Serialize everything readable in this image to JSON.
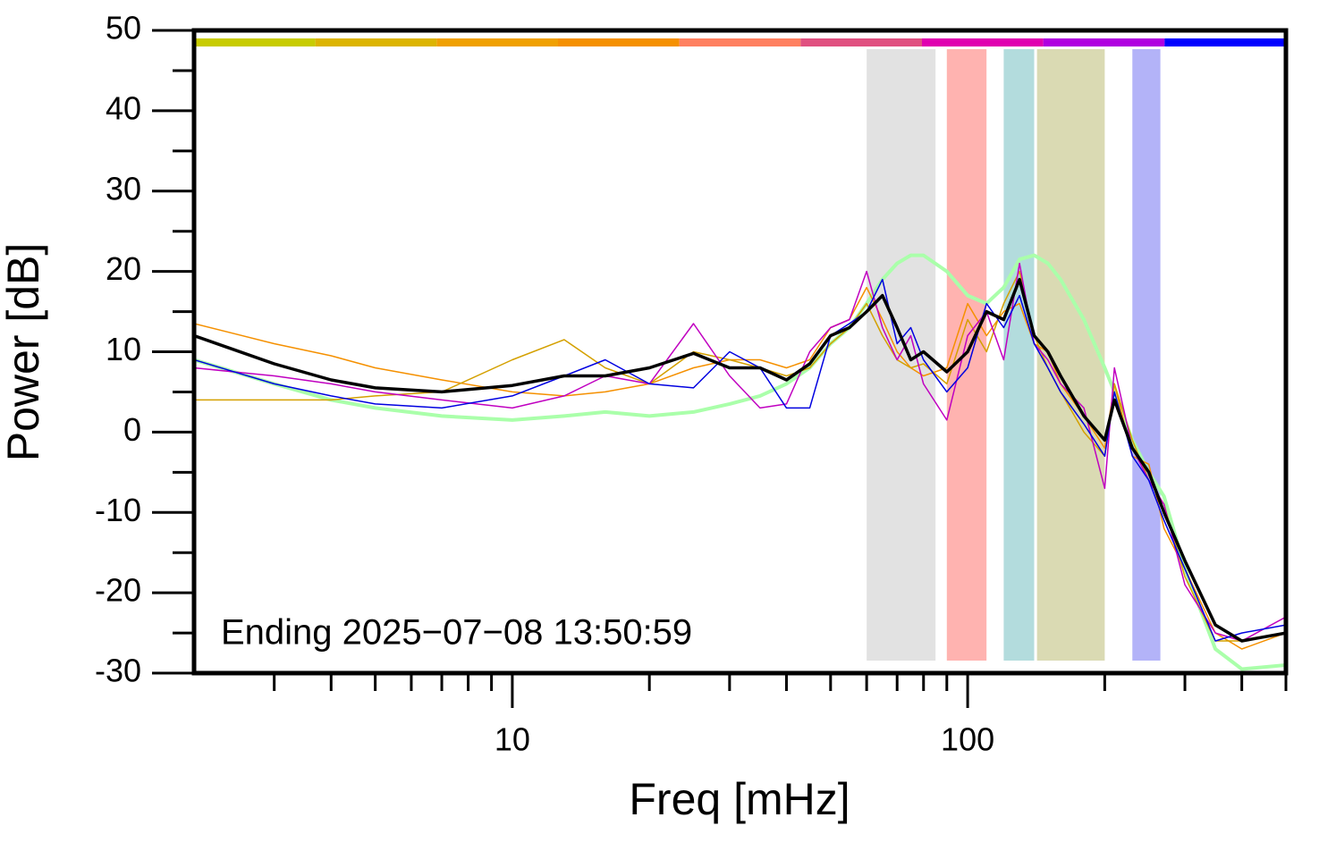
{
  "chart_data": {
    "type": "line",
    "annotation": "Ending 2025−07−08 13:50:59",
    "x_label": "Freq [mHz]",
    "y_label": "Power [dB]",
    "x_scale": "log",
    "xlim": [
      2,
      500
    ],
    "ylim": [
      -30,
      50
    ],
    "xticks": [
      10,
      100
    ],
    "xminorticks": [
      3,
      4,
      5,
      6,
      7,
      8,
      9,
      20,
      30,
      40,
      50,
      60,
      70,
      80,
      90,
      200,
      300,
      400,
      500
    ],
    "yticks": [
      -30,
      -20,
      -10,
      0,
      10,
      20,
      30,
      40,
      50
    ],
    "yminorticks": [
      -25,
      -15,
      -5,
      5,
      15,
      25,
      35,
      45
    ],
    "bands": [
      {
        "xlim": [
          60,
          85
        ],
        "color": "#e2e2e2"
      },
      {
        "xlim": [
          90,
          110
        ],
        "color": "#ffb3b0"
      },
      {
        "xlim": [
          120,
          140
        ],
        "color": "#b3dcdd"
      },
      {
        "xlim": [
          142,
          200
        ],
        "color": "#dadab3"
      },
      {
        "xlim": [
          230,
          265
        ],
        "color": "#b3b3f8"
      }
    ],
    "color_bar": [
      "#c8cc00",
      "#dcb400",
      "#f0a000",
      "#f59000",
      "#ff8060",
      "#e05080",
      "#e000b0",
      "#b000e0",
      "#0000ff"
    ],
    "x": [
      2,
      3,
      4,
      5,
      7,
      10,
      13,
      16,
      20,
      25,
      30,
      35,
      40,
      45,
      50,
      55,
      60,
      65,
      70,
      75,
      80,
      90,
      100,
      110,
      120,
      130,
      140,
      150,
      160,
      180,
      200,
      210,
      230,
      250,
      270,
      300,
      350,
      400,
      500
    ],
    "series": [
      {
        "color": "#aaffaa",
        "width": 4,
        "values": [
          9,
          6,
          4,
          3,
          2,
          1.5,
          2,
          2.5,
          2,
          2.5,
          3.5,
          4.5,
          6,
          8,
          11,
          13,
          16,
          19,
          21,
          22,
          22,
          20,
          17,
          16,
          18,
          21.5,
          22,
          21,
          19,
          14,
          8,
          5,
          -1,
          -5,
          -8,
          -17,
          -27,
          -29.5,
          -29
        ]
      },
      {
        "color": "#f59000",
        "width": 1.5,
        "values": [
          13.5,
          11,
          9.5,
          8,
          6.5,
          5,
          4.5,
          5,
          6,
          8,
          9,
          9,
          8,
          9,
          13,
          14,
          18,
          14,
          10,
          8,
          7,
          8,
          16,
          12,
          15,
          16,
          11,
          10,
          6,
          2,
          -2,
          6,
          -3,
          -4,
          -12,
          -17,
          -25,
          -27,
          -25
        ]
      },
      {
        "color": "#d4a000",
        "width": 1.5,
        "values": [
          4,
          4,
          4,
          4.5,
          5,
          9,
          11.5,
          8,
          6,
          10,
          9,
          8,
          7,
          8,
          11,
          13,
          16,
          12,
          9,
          8,
          8.5,
          6,
          14,
          10,
          16,
          20,
          12,
          8,
          5,
          0,
          -3,
          6,
          -1,
          -6,
          -9,
          -18,
          -26,
          -26,
          -25
        ]
      },
      {
        "color": "#c000c0",
        "width": 1.5,
        "values": [
          8,
          7,
          6,
          5,
          4,
          3,
          4.5,
          7,
          6,
          13.5,
          7,
          3,
          3.5,
          10,
          13,
          14,
          20,
          13,
          9,
          12,
          6,
          1.5,
          12,
          15,
          9,
          21,
          11,
          9,
          6,
          3,
          -7,
          8,
          -2,
          -6,
          -9,
          -19,
          -25,
          -26,
          -23
        ]
      },
      {
        "color": "#0000e0",
        "width": 1.5,
        "values": [
          9,
          6,
          4.5,
          3.5,
          3,
          4.5,
          7,
          9,
          6,
          5.5,
          10,
          8,
          3,
          3,
          12,
          13.5,
          15,
          19,
          11,
          13,
          9,
          5,
          8,
          16,
          13,
          17,
          11,
          8,
          5,
          1,
          -3,
          5,
          -3,
          -6,
          -11,
          -17,
          -26,
          -25,
          -24
        ]
      },
      {
        "color": "#000000",
        "width": 3.5,
        "values": [
          12,
          8.5,
          6.5,
          5.5,
          5,
          5.8,
          7,
          7,
          8,
          9.8,
          8,
          8,
          6.5,
          8.5,
          12,
          13,
          15,
          17,
          13,
          9,
          10,
          7.5,
          10,
          15,
          14,
          19,
          12,
          10,
          7,
          2,
          -1,
          4,
          -2,
          -5,
          -10,
          -16,
          -24,
          -26,
          -25
        ]
      }
    ]
  }
}
